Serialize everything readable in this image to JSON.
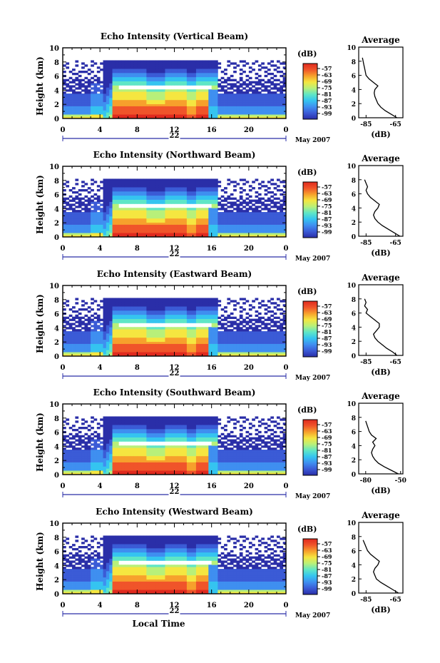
{
  "figure": {
    "xlabel": "Local Time",
    "date_label": "22",
    "month_label": "May 2007",
    "colorbar_unit": "(dB)",
    "colorbar_ticks": [
      "-57",
      "-63",
      "-69",
      "-75",
      "-81",
      "-87",
      "-93",
      "-99"
    ],
    "height_ticks": [
      "0",
      "2",
      "4",
      "6",
      "8",
      "10"
    ],
    "time_ticks": [
      "0",
      "4",
      "8",
      "12",
      "16",
      "20",
      "0"
    ],
    "average_title": "Average",
    "average_xlabel": "(dB)",
    "colors": {
      "scale": [
        "#2a2ea8",
        "#3b5bd6",
        "#3f8ff0",
        "#35c4f0",
        "#5fe6c6",
        "#b8f07a",
        "#f5e640",
        "#f7a02c",
        "#f0542a",
        "#e02a1e"
      ],
      "gap": "#ffffff"
    }
  },
  "chart_data": [
    {
      "type": "heatmap",
      "title": "Echo Intensity (Vertical Beam)",
      "ylabel": "Height (km)",
      "xlabel": "",
      "x_unit": "local time (h)",
      "xlim": [
        0,
        24
      ],
      "ylim": [
        0,
        10
      ],
      "colorbar": {
        "unit": "(dB)",
        "range": [
          -99,
          -57
        ]
      },
      "profile": {
        "title": "Average",
        "xlabel": "(dB)",
        "xticks": [
          "-85",
          "-65"
        ],
        "xlim": [
          -90,
          -60
        ],
        "heights": [
          0,
          0.5,
          1,
          1.5,
          2,
          2.5,
          3,
          3.5,
          4,
          4.5,
          5,
          5.5,
          6,
          6.5,
          7,
          7.5,
          8,
          8.5
        ],
        "values": [
          -64,
          -68,
          -72,
          -75,
          -77,
          -78,
          -79,
          -79.5,
          -79,
          -77,
          -80,
          -83,
          -85,
          -85.5,
          -86,
          -86.5,
          -87,
          -87.5
        ]
      }
    },
    {
      "type": "heatmap",
      "title": "Echo Intensity (Northward Beam)",
      "ylabel": "Height (km)",
      "xlabel": "",
      "x_unit": "local time (h)",
      "xlim": [
        0,
        24
      ],
      "ylim": [
        0,
        10
      ],
      "colorbar": {
        "unit": "(dB)",
        "range": [
          -99,
          -57
        ]
      },
      "profile": {
        "title": "Average",
        "xlabel": "(dB)",
        "xticks": [
          "-85",
          "-65"
        ],
        "xlim": [
          -90,
          -60
        ],
        "heights": [
          0,
          0.5,
          1,
          1.5,
          2,
          2.5,
          3,
          3.5,
          4,
          4.5,
          5,
          5.5,
          6,
          6.5,
          7,
          7.5,
          8
        ],
        "values": [
          -62,
          -66,
          -70,
          -74,
          -77,
          -79,
          -80,
          -79,
          -77,
          -76,
          -79,
          -82,
          -84,
          -85,
          -84,
          -85,
          -86
        ]
      }
    },
    {
      "type": "heatmap",
      "title": "Echo Intensity (Eastward Beam)",
      "ylabel": "Height (km)",
      "xlabel": "",
      "x_unit": "local time (h)",
      "xlim": [
        0,
        24
      ],
      "ylim": [
        0,
        10
      ],
      "colorbar": {
        "unit": "(dB)",
        "range": [
          -99,
          -57
        ]
      },
      "profile": {
        "title": "Average",
        "xlabel": "(dB)",
        "xticks": [
          "-85",
          "-65"
        ],
        "xlim": [
          -90,
          -60
        ],
        "heights": [
          0,
          0.5,
          1,
          1.5,
          2,
          2.5,
          3,
          3.5,
          4,
          4.5,
          5,
          5.5,
          6,
          6.5,
          7,
          7.5,
          8
        ],
        "values": [
          -64,
          -67,
          -71,
          -74,
          -77,
          -79,
          -80,
          -78,
          -76,
          -76,
          -79,
          -82,
          -85,
          -84,
          -86,
          -85,
          -86
        ]
      }
    },
    {
      "type": "heatmap",
      "title": "Echo Intensity (Southward Beam)",
      "ylabel": "Height (km)",
      "xlabel": "",
      "x_unit": "local time (h)",
      "xlim": [
        0,
        24
      ],
      "ylim": [
        0,
        10
      ],
      "colorbar": {
        "unit": "(dB)",
        "range": [
          -99,
          -57
        ]
      },
      "profile": {
        "title": "Average",
        "xlabel": "(dB)",
        "xticks": [
          "-80",
          "-50"
        ],
        "xlim": [
          -86,
          -48
        ],
        "heights": [
          0,
          0.5,
          1,
          1.5,
          2,
          2.5,
          3,
          3.5,
          4,
          4.5,
          5,
          5.5,
          6,
          6.5,
          7,
          7.5
        ],
        "values": [
          -52,
          -58,
          -64,
          -69,
          -72,
          -74,
          -75,
          -74,
          -72,
          -74,
          -71,
          -75,
          -77,
          -78,
          -79,
          -80
        ]
      }
    },
    {
      "type": "heatmap",
      "title": "Echo Intensity (Westward Beam)",
      "ylabel": "Height (km)",
      "xlabel": "Local Time",
      "x_unit": "local time (h)",
      "xlim": [
        0,
        24
      ],
      "ylim": [
        0,
        10
      ],
      "colorbar": {
        "unit": "(dB)",
        "range": [
          -99,
          -57
        ]
      },
      "profile": {
        "title": "Average",
        "xlabel": "(dB)",
        "xticks": [
          "-85",
          "-65"
        ],
        "xlim": [
          -90,
          -60
        ],
        "heights": [
          0,
          0.5,
          1,
          1.5,
          2,
          2.5,
          3,
          3.5,
          4,
          4.5,
          5,
          5.5,
          6,
          6.5,
          7,
          7.5
        ],
        "values": [
          -63,
          -67,
          -71,
          -75,
          -78,
          -79,
          -80,
          -79,
          -77,
          -76,
          -79,
          -82,
          -84,
          -85,
          -86,
          -87
        ]
      }
    }
  ]
}
